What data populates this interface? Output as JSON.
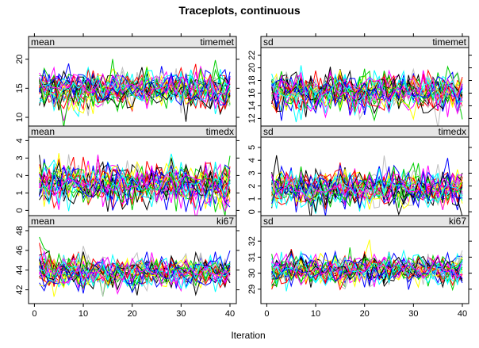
{
  "chart_data": {
    "type": "line",
    "title": "Traceplots, continuous",
    "xlabel": "Iteration",
    "x": {
      "min": 1,
      "max": 40
    },
    "x_ticks": [
      0,
      10,
      20,
      30,
      40
    ],
    "n_chains": 30,
    "colors": [
      "#000000",
      "#ff0000",
      "#00cd00",
      "#0000ff",
      "#00ffff",
      "#ff00ff",
      "#ffff00",
      "#bebebe"
    ],
    "panels": [
      {
        "id": "mean-timemet",
        "stat": "mean",
        "var": "timemet",
        "row": 0,
        "col": 0,
        "ylim": [
          8.5,
          22
        ],
        "yticks": [
          10,
          15,
          20
        ],
        "center": 14.8,
        "spread": 2.0
      },
      {
        "id": "sd-timemet",
        "stat": "sd",
        "var": "timemet",
        "row": 0,
        "col": 1,
        "ylim": [
          10.8,
          23.2
        ],
        "yticks": [
          12,
          14,
          16,
          18,
          20,
          22
        ],
        "center": 16.2,
        "spread": 1.9
      },
      {
        "id": "mean-timedx",
        "stat": "mean",
        "var": "timedx",
        "row": 1,
        "col": 0,
        "ylim": [
          -0.3,
          4.2
        ],
        "yticks": [
          0,
          1,
          2,
          3,
          4
        ],
        "center": 1.5,
        "spread": 0.75
      },
      {
        "id": "sd-timedx",
        "stat": "sd",
        "var": "timedx",
        "row": 1,
        "col": 1,
        "ylim": [
          -0.3,
          5.8
        ],
        "yticks": [
          0,
          1,
          2,
          3,
          4,
          5
        ],
        "center": 1.8,
        "spread": 0.9
      },
      {
        "id": "mean-ki67",
        "stat": "mean",
        "var": "ki67",
        "row": 2,
        "col": 0,
        "ylim": [
          40.6,
          48.4
        ],
        "yticks": [
          42,
          44,
          46,
          48
        ],
        "center": 43.8,
        "spread": 1.0
      },
      {
        "id": "sd-ki67",
        "stat": "sd",
        "var": "ki67",
        "row": 2,
        "col": 1,
        "ylim": [
          28.1,
          32.9
        ],
        "yticks": [
          29,
          30,
          31,
          32
        ],
        "center": 30.2,
        "spread": 0.55
      }
    ]
  }
}
